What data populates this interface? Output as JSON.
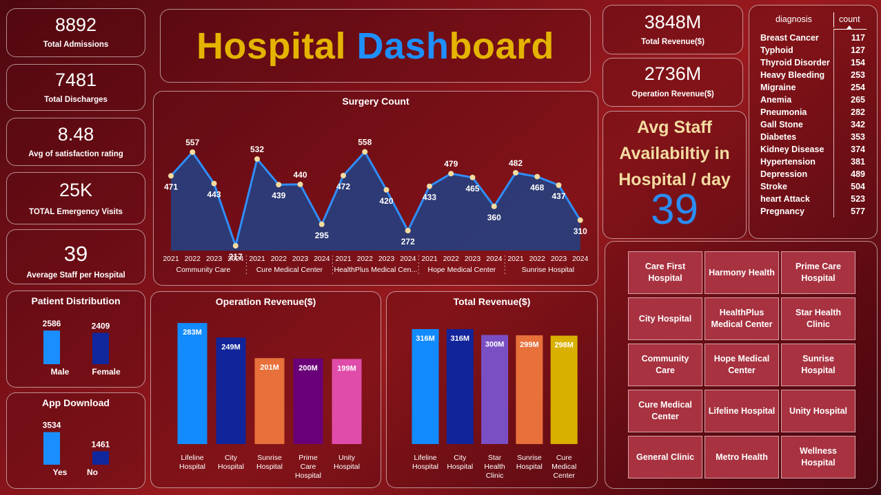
{
  "dashboard_title": {
    "part1": "Hospital",
    "part2": "Dash",
    "part3": "board"
  },
  "kpis": {
    "total_admissions": {
      "value": "8892",
      "label": "Total Admissions"
    },
    "total_discharges": {
      "value": "7481",
      "label": "Total Discharges"
    },
    "avg_satisfaction": {
      "value": "8.48",
      "label": "Avg of satisfaction rating"
    },
    "emergency_visits": {
      "value": "25K",
      "label": "TOTAL Emergency Visits"
    },
    "avg_staff_per_hospital": {
      "value": "39",
      "label": "Average Staff per Hospital"
    },
    "total_revenue": {
      "value": "3848M",
      "label": "Total Revenue($)"
    },
    "operation_revenue": {
      "value": "2736M",
      "label": "Operation Revenue($)"
    }
  },
  "staff_availability": {
    "line1": "Avg Staff",
    "line2": "Availabiltiy in",
    "line3": "Hospital / day",
    "value": "39"
  },
  "diagnosis_table": {
    "col_name": "diagnosis",
    "col_count": "count",
    "rows": [
      {
        "name": "Breast Cancer",
        "count": "117"
      },
      {
        "name": "Typhoid",
        "count": "127"
      },
      {
        "name": "Thyroid Disorder",
        "count": "154"
      },
      {
        "name": "Heavy Bleeding",
        "count": "253"
      },
      {
        "name": "Migraine",
        "count": "254"
      },
      {
        "name": "Anemia",
        "count": "265"
      },
      {
        "name": "Pneumonia",
        "count": "282"
      },
      {
        "name": "Gall Stone",
        "count": "342"
      },
      {
        "name": "Diabetes",
        "count": "353"
      },
      {
        "name": "Kidney Disease",
        "count": "374"
      },
      {
        "name": "Hypertension",
        "count": "381"
      },
      {
        "name": "Depression",
        "count": "489"
      },
      {
        "name": "Stroke",
        "count": "504"
      },
      {
        "name": "heart Attack",
        "count": "523"
      },
      {
        "name": "Pregnancy",
        "count": "577"
      }
    ]
  },
  "hospital_slicer": [
    "Care First Hospital",
    "Harmony Health",
    "Prime Care Hospital",
    "City Hospital",
    "HealthPlus Medical Center",
    "Star Health Clinic",
    "Community Care",
    "Hope Medical Center",
    "Sunrise Hospital",
    "Cure Medical Center",
    "Lifeline Hospital",
    "Unity Hospital",
    "General Clinic",
    "Metro Health",
    "Wellness Hospital"
  ],
  "colors": {
    "accent_gold": "#e4b400",
    "accent_blue": "#1e8fff",
    "tile_bg": "#a83240",
    "staff_text": "#f3dca0"
  },
  "chart_data": [
    {
      "type": "area",
      "title": "Surgery Count",
      "groups": [
        {
          "name": "Community Care",
          "label": "Community Care",
          "years": [
            "2021",
            "2022",
            "2023",
            "2024"
          ],
          "values": [
            471,
            557,
            443,
            217
          ]
        },
        {
          "name": "Cure Medical Center",
          "label": "Cure Medical Center",
          "years": [
            "2021",
            "2022",
            "2023",
            "2024"
          ],
          "values": [
            532,
            439,
            440,
            295
          ]
        },
        {
          "name": "HealthPlus Medical Center",
          "label": "HealthPlus Medical Cen...",
          "years": [
            "2021",
            "2022",
            "2023",
            "2024"
          ],
          "values": [
            472,
            558,
            420,
            272
          ]
        },
        {
          "name": "Hope Medical Center",
          "label": "Hope Medical Center",
          "years": [
            "2021",
            "2022",
            "2023",
            "2024"
          ],
          "values": [
            433,
            479,
            465,
            360
          ]
        },
        {
          "name": "Sunrise Hospital",
          "label": "Sunrise Hospital",
          "years": [
            "2021",
            "2022",
            "2023",
            "2024"
          ],
          "values": [
            482,
            468,
            437,
            310
          ]
        }
      ],
      "line_color": "#2f8fff",
      "area_color": "#2a3d7a"
    },
    {
      "type": "bar",
      "title": "Operation Revenue($)",
      "categories": [
        "Lifeline Hospital",
        "City Hospital",
        "Sunrise Hospital",
        "Prime Care Hospital",
        "Unity Hospital"
      ],
      "values": [
        283,
        249,
        201,
        200,
        199
      ],
      "value_labels": [
        "283M",
        "249M",
        "201M",
        "200M",
        "199M"
      ],
      "colors": [
        "#128bff",
        "#11249a",
        "#e8703a",
        "#6a0078",
        "#e04caa"
      ]
    },
    {
      "type": "bar",
      "title": "Total Revenue($)",
      "categories": [
        "Lifeline Hospital",
        "City Hospital",
        "Star Health Clinic",
        "Sunrise Hospital",
        "Cure Medical Center"
      ],
      "values": [
        316,
        316,
        300,
        299,
        298
      ],
      "value_labels": [
        "316M",
        "316M",
        "300M",
        "299M",
        "298M"
      ],
      "colors": [
        "#128bff",
        "#11249a",
        "#7a4fc4",
        "#e8703a",
        "#d9b000"
      ]
    },
    {
      "type": "bar",
      "title": "Patient Distribution",
      "categories": [
        "Male",
        "Female"
      ],
      "values": [
        2586,
        2409
      ],
      "colors": [
        "#1b8eff",
        "#10269c"
      ]
    },
    {
      "type": "bar",
      "title": "App Download",
      "categories": [
        "Yes",
        "No"
      ],
      "values": [
        3534,
        1461
      ],
      "colors": [
        "#1b8eff",
        "#10269c"
      ]
    }
  ]
}
